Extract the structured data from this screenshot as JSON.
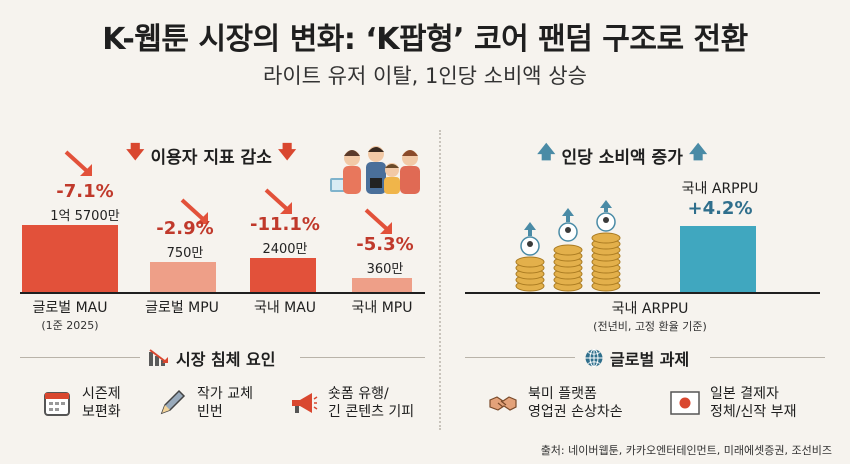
{
  "title": "K-웹툰 시장의 변화: ‘K팝형’ 코어 팬덤 구조로 전환",
  "subtitle": "라이트 유저 이탈, 1인당 소비액 상승",
  "left_section_title": "이용자 지표 감소",
  "right_section_title": "인당 소비액 증가",
  "bars": [
    {
      "label": "글로벌 MAU",
      "note": "(1준 2025)",
      "pct": "-7.1%",
      "value_label": "1억 5700만",
      "height_ratio": 0.95,
      "color": "#e2513a"
    },
    {
      "label": "글로벌 MPU",
      "note": "",
      "pct": "-2.9%",
      "value_label": "750만",
      "height_ratio": 0.43,
      "color": "#ee9f88"
    },
    {
      "label": "국내 MAU",
      "note": "",
      "pct": "-11.1%",
      "value_label": "2400만",
      "height_ratio": 0.48,
      "color": "#e2513a"
    },
    {
      "label": "국내 MPU",
      "note": "",
      "pct": "-5.3%",
      "value_label": "360만",
      "height_ratio": 0.2,
      "color": "#ee9f88"
    }
  ],
  "arppu": {
    "top_label": "국내 ARPPU",
    "pct": "+4.2%",
    "bottom_label": "국내 ARPPU",
    "note": "(전년비, 고정 환율 기준)",
    "color": "#40a7bf"
  },
  "factors_left": {
    "title": "시장 침체 요인",
    "items": [
      {
        "line1": "시즌제",
        "line2": "보편화",
        "icon": "calendar-icon"
      },
      {
        "line1": "작가 교체",
        "line2": "빈번",
        "icon": "pen-icon"
      },
      {
        "line1": "숏폼 유행/",
        "line2": "긴 콘텐츠 기피",
        "icon": "megaphone-icon"
      }
    ]
  },
  "factors_right": {
    "title": "글로벌 과제",
    "items": [
      {
        "line1": "북미 플랫폼",
        "line2": "영업권 손상차손",
        "icon": "handshake-icon"
      },
      {
        "line1": "일본 결제자",
        "line2": "정체/신작 부재",
        "icon": "japan-flag-icon"
      }
    ]
  },
  "source": "출처: 네이버웹툰, 카카오엔터테인먼트, 미래에셋증권, 조선비즈"
}
